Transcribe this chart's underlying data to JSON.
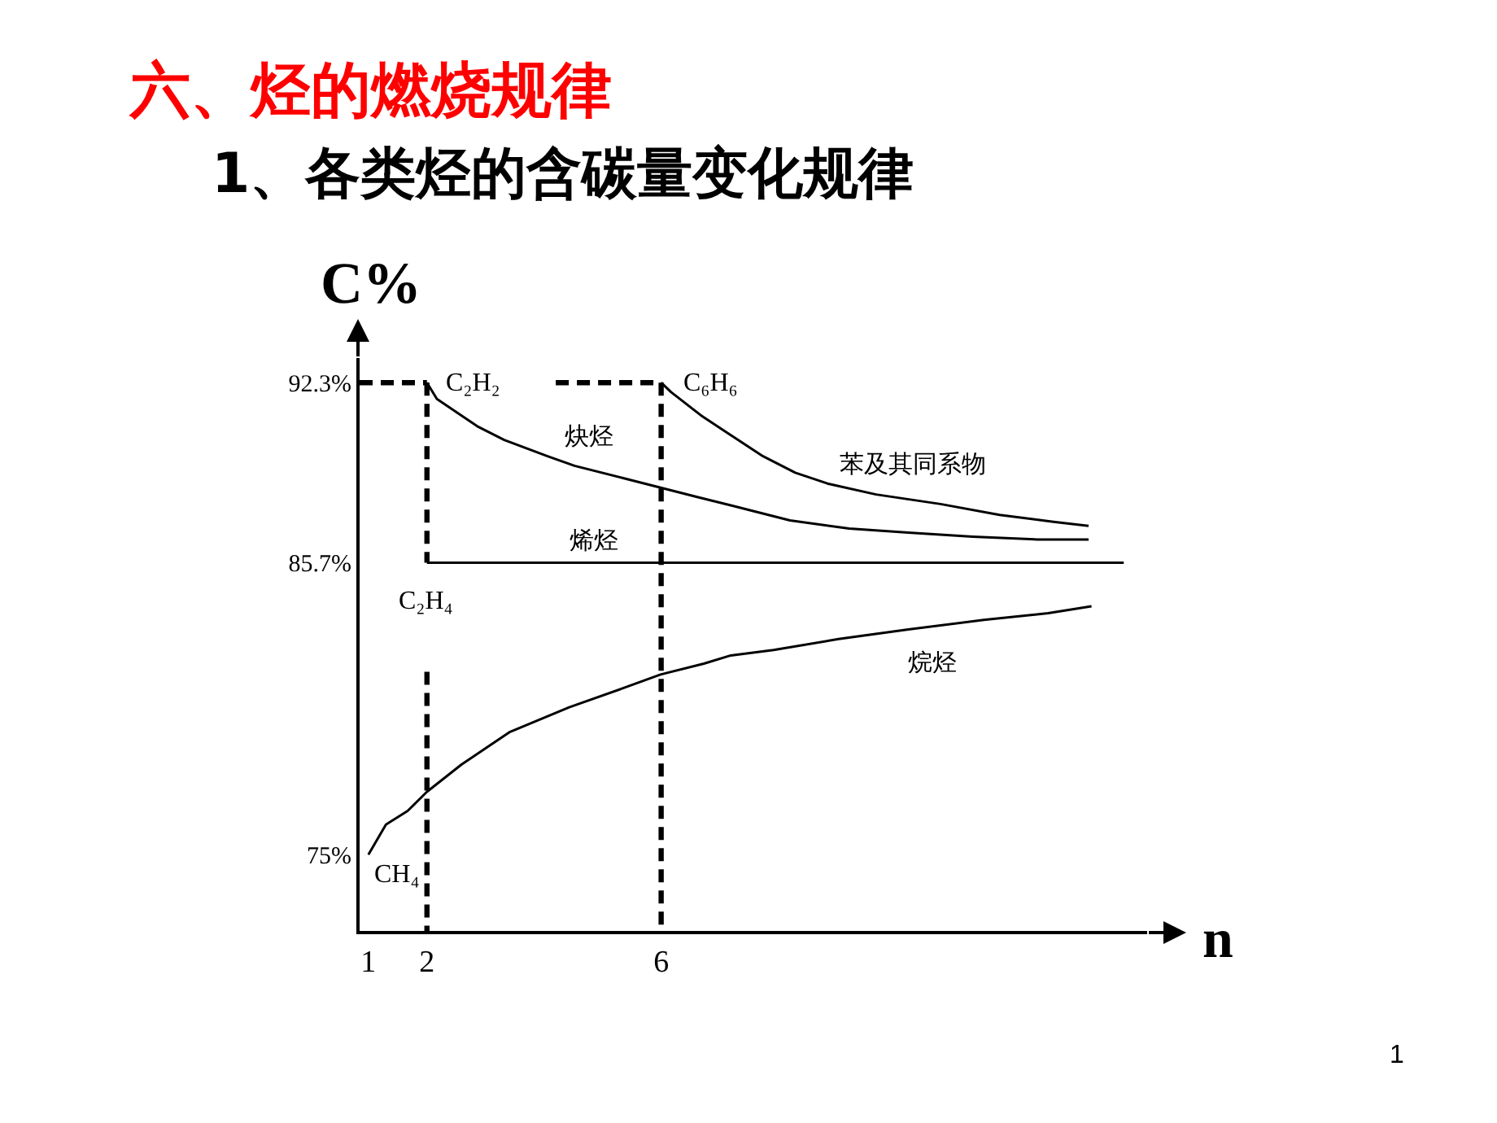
{
  "chart_data": {
    "type": "line",
    "title": "六、烃的燃烧规律",
    "subtitle": "1、各类烃的含碳量变化规律",
    "xlabel": "n",
    "ylabel": "C%",
    "xlim": [
      0.85,
      14.3
    ],
    "xticks": [
      1,
      2,
      6
    ],
    "ylim": [
      72.2,
      93.2
    ],
    "yticks": [
      {
        "value": 75,
        "label": "75%"
      },
      {
        "value": 85.7,
        "label": "85.7%"
      },
      {
        "value": 92.3,
        "label": "92.3%"
      }
    ],
    "series": [
      {
        "name": "炔烃",
        "color": "#000000",
        "x": [
          2,
          2.17,
          2.86,
          3.32,
          4.06,
          4.52,
          5.35,
          5.99,
          6.63,
          7.19,
          8.2,
          9.21,
          10.22,
          11.32,
          12.43,
          13.3
        ],
        "values": [
          92.3,
          91.7,
          90.7,
          90.2,
          89.6,
          89.25,
          88.8,
          88.45,
          88.1,
          87.8,
          87.25,
          86.95,
          86.8,
          86.65,
          86.55,
          86.55
        ]
      },
      {
        "name": "烯烃",
        "color": "#000000",
        "x": [
          2,
          13.9
        ],
        "values": [
          85.7,
          85.7
        ]
      },
      {
        "name": "苯及其同系物",
        "color": "#000000",
        "x": [
          6,
          6.17,
          6.68,
          7.1,
          7.74,
          8.29,
          8.84,
          9.67,
          10.77,
          11.78,
          12.7,
          13.3
        ],
        "values": [
          92.3,
          91.95,
          91.1,
          90.5,
          89.6,
          89.0,
          88.6,
          88.2,
          87.85,
          87.45,
          87.2,
          87.05
        ]
      },
      {
        "name": "烷烃",
        "color": "#000000",
        "x": [
          1,
          1.3,
          1.67,
          2,
          2.59,
          3.42,
          4.43,
          5.35,
          5.99,
          6.73,
          7.19,
          7.92,
          9.03,
          10.22,
          11.51,
          12.61,
          13.35
        ],
        "values": [
          75,
          76.1,
          76.6,
          77.3,
          78.3,
          79.5,
          80.4,
          81.1,
          81.6,
          82.0,
          82.3,
          82.5,
          82.9,
          83.25,
          83.6,
          83.85,
          84.1
        ]
      },
      {
        "type": "line",
        "line_style": "dashed",
        "color": "#000000",
        "x": [
          0.85,
          2
        ],
        "values": [
          92.3,
          92.3
        ]
      },
      {
        "type": "line",
        "line_style": "dashed",
        "color": "#000000",
        "x": [
          4.2,
          6
        ],
        "values": [
          92.3,
          92.3
        ]
      },
      {
        "type": "line",
        "line_style": "dashed",
        "color": "#000000",
        "x": [
          2,
          2
        ],
        "values": [
          92.3,
          85.7
        ]
      },
      {
        "type": "line",
        "line_style": "dashed",
        "color": "#000000",
        "x": [
          2,
          2
        ],
        "values": [
          81.7,
          72.2
        ]
      },
      {
        "type": "line",
        "line_style": "dashed",
        "color": "#000000",
        "x": [
          6,
          6
        ],
        "values": [
          92.3,
          72.2
        ]
      }
    ],
    "annotations": [
      {
        "text": "C₂H₂",
        "x": 2,
        "y": 92.3
      },
      {
        "text": "C₆H₆",
        "x": 6,
        "y": 92.3
      },
      {
        "text": "C₂H₄",
        "x": 2,
        "y": 85.7
      },
      {
        "text": "CH₄",
        "x": 1,
        "y": 75
      },
      "1"
    ]
  }
}
